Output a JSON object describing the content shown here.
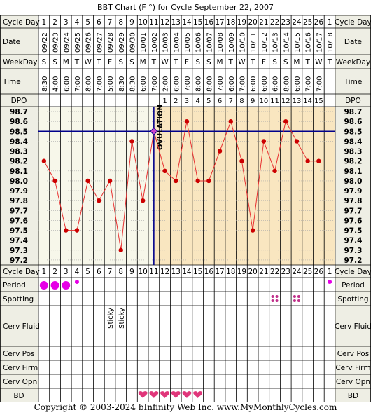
{
  "page": {
    "title": "BBT Chart (F °) for Cycle September 22, 2007",
    "copyright": "Copyright © 2003-2024 bInfinity Web Inc.     www.MyMonthlyCycles.com"
  },
  "row_labels": {
    "cycle_day": "Cycle Day",
    "date": "Date",
    "weekday": "WeekDay",
    "time": "Time",
    "dpo": "DPO",
    "period": "Period",
    "spotting": "Spotting",
    "cerv_fluid": "Cerv Fluid",
    "cerv_pos": "Cerv Pos",
    "cerv_firm": "Cerv Firm",
    "cerv_opn": "Cerv Opn",
    "bd": "BD"
  },
  "colors": {
    "label_bg": "#eeeee4",
    "pre_ovulation_bg": "#f7f7ea",
    "post_ovulation_bg": "#f9e6c0",
    "line": "#e83030",
    "marker": "#cc0000",
    "coverline": "#00008b",
    "period": "#e600e6",
    "spotting": "#c0308a",
    "heart": "#e0367a"
  },
  "days": [
    {
      "cycle_day": "1",
      "date": "09/22",
      "weekday": "S",
      "time": "8:30",
      "dpo": "",
      "period": "heavy",
      "spotting": "",
      "cerv_fluid": "",
      "bd": ""
    },
    {
      "cycle_day": "2",
      "date": "09/23",
      "weekday": "S",
      "time": "4:00",
      "dpo": "",
      "period": "heavy",
      "spotting": "",
      "cerv_fluid": "",
      "bd": ""
    },
    {
      "cycle_day": "3",
      "date": "09/24",
      "weekday": "M",
      "time": "6:00",
      "dpo": "",
      "period": "heavy",
      "spotting": "",
      "cerv_fluid": "",
      "bd": ""
    },
    {
      "cycle_day": "4",
      "date": "09/25",
      "weekday": "T",
      "time": "7:00",
      "dpo": "",
      "period": "light",
      "spotting": "",
      "cerv_fluid": "",
      "bd": ""
    },
    {
      "cycle_day": "5",
      "date": "09/26",
      "weekday": "W",
      "time": "8:00",
      "dpo": "",
      "period": "",
      "spotting": "",
      "cerv_fluid": "",
      "bd": ""
    },
    {
      "cycle_day": "6",
      "date": "09/27",
      "weekday": "T",
      "time": "7:00",
      "dpo": "",
      "period": "",
      "spotting": "",
      "cerv_fluid": "",
      "bd": ""
    },
    {
      "cycle_day": "7",
      "date": "09/28",
      "weekday": "F",
      "time": "5:00",
      "dpo": "",
      "period": "",
      "spotting": "",
      "cerv_fluid": "Sticky",
      "bd": ""
    },
    {
      "cycle_day": "8",
      "date": "09/29",
      "weekday": "S",
      "time": "8:30",
      "dpo": "",
      "period": "",
      "spotting": "",
      "cerv_fluid": "Sticky",
      "bd": ""
    },
    {
      "cycle_day": "9",
      "date": "09/30",
      "weekday": "S",
      "time": "8:30",
      "dpo": "",
      "period": "",
      "spotting": "",
      "cerv_fluid": "",
      "bd": ""
    },
    {
      "cycle_day": "10",
      "date": "10/01",
      "weekday": "M",
      "time": "6:00",
      "dpo": "",
      "period": "",
      "spotting": "",
      "cerv_fluid": "",
      "bd": "heart"
    },
    {
      "cycle_day": "11",
      "date": "10/02",
      "weekday": "T",
      "time": "7:00",
      "dpo": "",
      "period": "",
      "spotting": "",
      "cerv_fluid": "",
      "bd": "heart"
    },
    {
      "cycle_day": "12",
      "date": "10/03",
      "weekday": "W",
      "time": "2:00",
      "dpo": "1",
      "period": "",
      "spotting": "",
      "cerv_fluid": "",
      "bd": "heart"
    },
    {
      "cycle_day": "13",
      "date": "10/04",
      "weekday": "T",
      "time": "6:00",
      "dpo": "2",
      "period": "",
      "spotting": "",
      "cerv_fluid": "",
      "bd": "heart"
    },
    {
      "cycle_day": "14",
      "date": "10/05",
      "weekday": "F",
      "time": "7:00",
      "dpo": "3",
      "period": "",
      "spotting": "",
      "cerv_fluid": "",
      "bd": "heart"
    },
    {
      "cycle_day": "15",
      "date": "10/06",
      "weekday": "S",
      "time": "8:00",
      "dpo": "4",
      "period": "",
      "spotting": "",
      "cerv_fluid": "",
      "bd": "heart"
    },
    {
      "cycle_day": "16",
      "date": "10/07",
      "weekday": "S",
      "time": "8:00",
      "dpo": "5",
      "period": "",
      "spotting": "",
      "cerv_fluid": "",
      "bd": ""
    },
    {
      "cycle_day": "17",
      "date": "10/08",
      "weekday": "M",
      "time": "7:00",
      "dpo": "6",
      "period": "",
      "spotting": "",
      "cerv_fluid": "",
      "bd": ""
    },
    {
      "cycle_day": "18",
      "date": "10/09",
      "weekday": "T",
      "time": "6:00",
      "dpo": "7",
      "period": "",
      "spotting": "",
      "cerv_fluid": "",
      "bd": ""
    },
    {
      "cycle_day": "19",
      "date": "10/10",
      "weekday": "W",
      "time": "7:00",
      "dpo": "8",
      "period": "",
      "spotting": "",
      "cerv_fluid": "",
      "bd": ""
    },
    {
      "cycle_day": "20",
      "date": "10/11",
      "weekday": "T",
      "time": "6:00",
      "dpo": "9",
      "period": "",
      "spotting": "",
      "cerv_fluid": "",
      "bd": ""
    },
    {
      "cycle_day": "21",
      "date": "10/12",
      "weekday": "F",
      "time": "6:00",
      "dpo": "10",
      "period": "",
      "spotting": "",
      "cerv_fluid": "",
      "bd": ""
    },
    {
      "cycle_day": "22",
      "date": "10/13",
      "weekday": "S",
      "time": "6:00",
      "dpo": "11",
      "period": "",
      "spotting": "dots",
      "cerv_fluid": "",
      "bd": ""
    },
    {
      "cycle_day": "23",
      "date": "10/14",
      "weekday": "S",
      "time": "8:00",
      "dpo": "12",
      "period": "",
      "spotting": "",
      "cerv_fluid": "",
      "bd": ""
    },
    {
      "cycle_day": "24",
      "date": "10/15",
      "weekday": "M",
      "time": "6:00",
      "dpo": "13",
      "period": "",
      "spotting": "dots",
      "cerv_fluid": "",
      "bd": ""
    },
    {
      "cycle_day": "25",
      "date": "10/16",
      "weekday": "T",
      "time": "7:00",
      "dpo": "14",
      "period": "",
      "spotting": "",
      "cerv_fluid": "",
      "bd": ""
    },
    {
      "cycle_day": "26",
      "date": "10/17",
      "weekday": "W",
      "time": "7:00",
      "dpo": "15",
      "period": "",
      "spotting": "",
      "cerv_fluid": "",
      "bd": ""
    },
    {
      "cycle_day": "1",
      "date": "10/18",
      "weekday": "T",
      "time": "",
      "dpo": "",
      "period": "light",
      "spotting": "",
      "cerv_fluid": "",
      "bd": ""
    }
  ],
  "chart_data": {
    "type": "line",
    "title": "BBT Chart (F °) for Cycle September 22, 2007",
    "xlabel": "Cycle Day",
    "ylabel": "",
    "x": [
      1,
      2,
      3,
      4,
      5,
      6,
      7,
      8,
      9,
      10,
      11,
      12,
      13,
      14,
      15,
      16,
      17,
      18,
      19,
      20,
      21,
      22,
      23,
      24,
      25,
      26
    ],
    "series": [
      {
        "values": [
          98.2,
          98.0,
          97.5,
          97.5,
          98.0,
          97.8,
          98.0,
          97.3,
          98.4,
          97.8,
          98.5,
          98.1,
          98.0,
          98.6,
          98.0,
          98.0,
          98.3,
          98.6,
          98.2,
          97.5,
          98.4,
          98.1,
          98.6,
          98.4,
          98.2,
          98.2
        ]
      }
    ],
    "ylim": [
      97.2,
      98.7
    ],
    "y_ticks": [
      "98.7",
      "98.6",
      "98.5",
      "98.4",
      "98.3",
      "98.2",
      "98.1",
      "98.0",
      "97.9",
      "97.8",
      "97.7",
      "97.6",
      "97.5",
      "97.4",
      "97.3",
      "97.2"
    ],
    "coverline": 98.5,
    "ovulation_day": 11,
    "ovulation_label": "OVULATION",
    "grid": true
  }
}
